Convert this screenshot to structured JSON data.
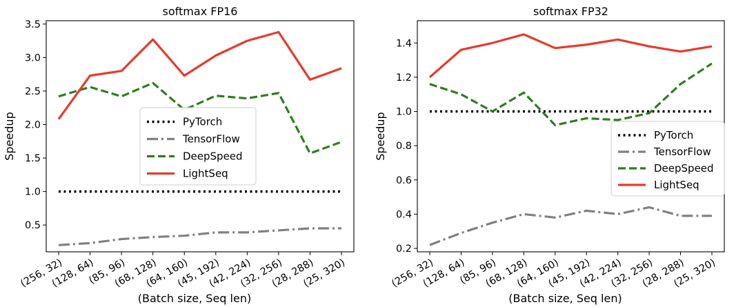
{
  "chart_data": [
    {
      "type": "line",
      "title": "softmax FP16",
      "xlabel": "(Batch size, Seq len)",
      "ylabel": "Speedup",
      "categories": [
        "(256, 32)",
        "(128, 64)",
        "(85, 96)",
        "(68, 128)",
        "(64, 160)",
        "(45, 192)",
        "(42, 224)",
        "(32, 256)",
        "(28, 288)",
        "(25, 320)"
      ],
      "ylim": [
        0.1,
        3.55
      ],
      "yticks": [
        "0.5",
        "1.0",
        "1.5",
        "2.0",
        "2.5",
        "3.0",
        "3.5"
      ],
      "grid": false,
      "legend": "center",
      "series": [
        {
          "name": "PyTorch",
          "color": "#000000",
          "style": "dotted",
          "values": [
            1.0,
            1.0,
            1.0,
            1.0,
            1.0,
            1.0,
            1.0,
            1.0,
            1.0,
            1.0
          ]
        },
        {
          "name": "TensorFlow",
          "color": "#808080",
          "style": "dashdot",
          "values": [
            0.2,
            0.23,
            0.29,
            0.32,
            0.34,
            0.39,
            0.39,
            0.42,
            0.45,
            0.45
          ]
        },
        {
          "name": "DeepSpeed",
          "color": "#2e7d1e",
          "style": "dashed",
          "values": [
            2.42,
            2.56,
            2.42,
            2.62,
            2.22,
            2.43,
            2.39,
            2.47,
            1.57,
            1.74
          ]
        },
        {
          "name": "LightSeq",
          "color": "#e8392b",
          "style": "solid",
          "values": [
            2.08,
            2.73,
            2.8,
            3.27,
            2.73,
            3.03,
            3.25,
            3.38,
            2.67,
            2.84
          ]
        }
      ]
    },
    {
      "type": "line",
      "title": "softmax FP32",
      "xlabel": "(Batch size, Seq len)",
      "ylabel": "Speedup",
      "categories": [
        "(256, 32)",
        "(128, 64)",
        "(85, 96)",
        "(68, 128)",
        "(64, 160)",
        "(45, 192)",
        "(42, 224)",
        "(32, 256)",
        "(28, 288)",
        "(25, 320)"
      ],
      "ylim": [
        0.18,
        1.53
      ],
      "yticks": [
        "0.2",
        "0.4",
        "0.6",
        "0.8",
        "1.0",
        "1.2",
        "1.4"
      ],
      "grid": false,
      "legend": "center-right",
      "series": [
        {
          "name": "PyTorch",
          "color": "#000000",
          "style": "dotted",
          "values": [
            1.0,
            1.0,
            1.0,
            1.0,
            1.0,
            1.0,
            1.0,
            1.0,
            1.0,
            1.0
          ]
        },
        {
          "name": "TensorFlow",
          "color": "#808080",
          "style": "dashdot",
          "values": [
            0.22,
            0.29,
            0.35,
            0.4,
            0.38,
            0.42,
            0.4,
            0.44,
            0.39,
            0.39
          ]
        },
        {
          "name": "DeepSpeed",
          "color": "#2e7d1e",
          "style": "dashed",
          "values": [
            1.16,
            1.1,
            1.0,
            1.11,
            0.92,
            0.96,
            0.95,
            0.99,
            1.16,
            1.28
          ]
        },
        {
          "name": "LightSeq",
          "color": "#e8392b",
          "style": "solid",
          "values": [
            1.2,
            1.36,
            1.4,
            1.45,
            1.37,
            1.39,
            1.42,
            1.38,
            1.35,
            1.38
          ]
        }
      ]
    }
  ]
}
